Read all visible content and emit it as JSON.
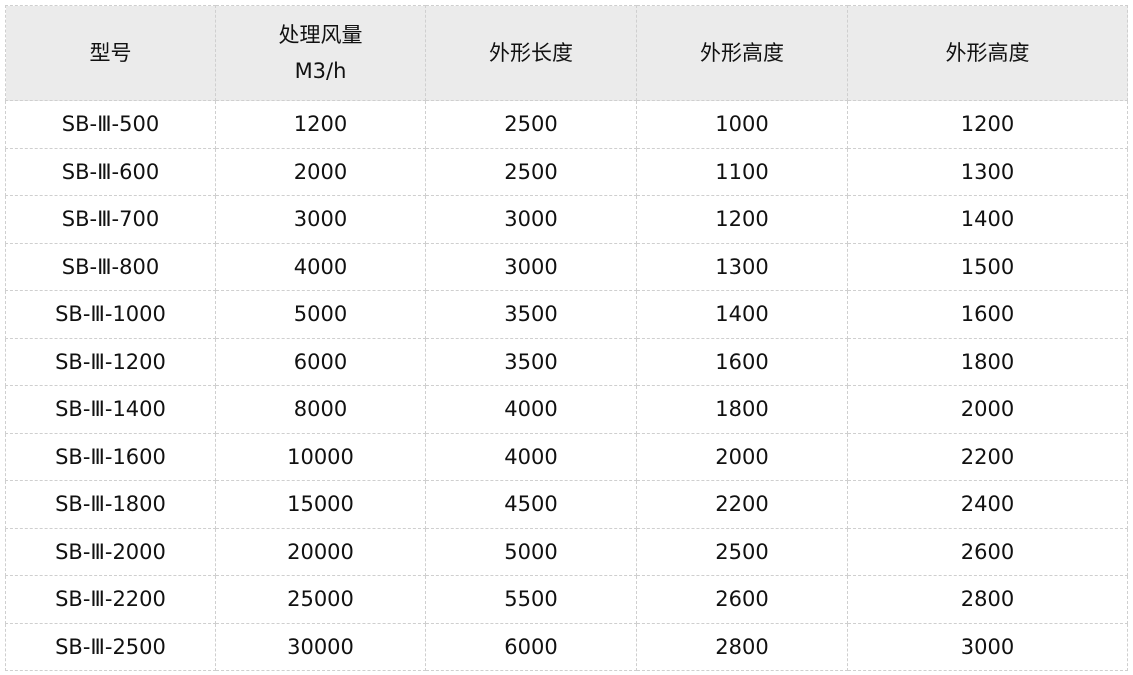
{
  "table": {
    "headers": [
      {
        "line1": "型号",
        "line2": ""
      },
      {
        "line1": "处理风量",
        "line2": "M3/h"
      },
      {
        "line1": "外形长度",
        "line2": ""
      },
      {
        "line1": "外形高度",
        "line2": ""
      },
      {
        "line1": "外形高度",
        "line2": ""
      }
    ],
    "rows": [
      [
        "SB-Ⅲ-500",
        "1200",
        "2500",
        "1000",
        "1200"
      ],
      [
        "SB-Ⅲ-600",
        "2000",
        "2500",
        "1100",
        "1300"
      ],
      [
        "SB-Ⅲ-700",
        "3000",
        "3000",
        "1200",
        "1400"
      ],
      [
        "SB-Ⅲ-800",
        "4000",
        "3000",
        "1300",
        "1500"
      ],
      [
        "SB-Ⅲ-1000",
        "5000",
        "3500",
        "1400",
        "1600"
      ],
      [
        "SB-Ⅲ-1200",
        "6000",
        "3500",
        "1600",
        "1800"
      ],
      [
        "SB-Ⅲ-1400",
        "8000",
        "4000",
        "1800",
        "2000"
      ],
      [
        "SB-Ⅲ-1600",
        "10000",
        "4000",
        "2000",
        "2200"
      ],
      [
        "SB-Ⅲ-1800",
        "15000",
        "4500",
        "2200",
        "2400"
      ],
      [
        "SB-Ⅲ-2000",
        "20000",
        "5000",
        "2500",
        "2600"
      ],
      [
        "SB-Ⅲ-2200",
        "25000",
        "5500",
        "2600",
        "2800"
      ],
      [
        "SB-Ⅲ-2500",
        "30000",
        "6000",
        "2800",
        "3000"
      ]
    ]
  }
}
